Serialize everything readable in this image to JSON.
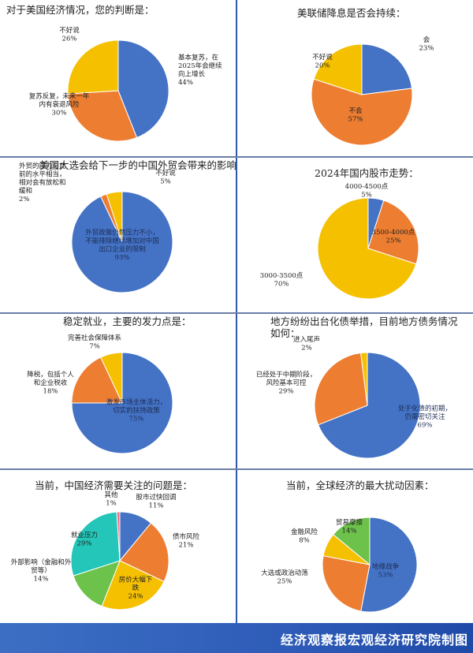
{
  "footer": {
    "credit": "经济观察报宏观经济研究院制图"
  },
  "colors": {
    "blue": "#4472c4",
    "orange": "#ed7d31",
    "yellow": "#f5c000",
    "gray": "#a5a5a5",
    "teal": "#23c6b8",
    "green": "#6cc24a",
    "pink": "#f26b8a",
    "rule": "#2e59a8"
  },
  "chart_data": [
    {
      "type": "pie",
      "title": "对于美国经济情况，您的判断是：",
      "slices": [
        {
          "label": "基本复苏、在2025年会继续向上增长",
          "label_lines": [
            "基本复苏，在",
            "2025年会继续",
            "向上增长"
          ],
          "value": 44,
          "value_text": "44%",
          "color": "#4472c4"
        },
        {
          "label": "复苏反复，未来一年内有衰退风险",
          "label_lines": [
            "复苏反复，未来一年",
            "内有衰退风险"
          ],
          "value": 30,
          "value_text": "30%",
          "color": "#ed7d31"
        },
        {
          "label": "不好说",
          "label_lines": [
            "不好说"
          ],
          "value": 26,
          "value_text": "26%",
          "color": "#f5c000"
        }
      ]
    },
    {
      "type": "pie",
      "title": "美联储降息是否会持续：",
      "slices": [
        {
          "label": "会",
          "label_lines": [
            "会"
          ],
          "value": 23,
          "value_text": "23%",
          "color": "#4472c4"
        },
        {
          "label": "不会",
          "label_lines": [
            "不会"
          ],
          "value": 57,
          "value_text": "57%",
          "color": "#ed7d31"
        },
        {
          "label": "不好说",
          "label_lines": [
            "不好说"
          ],
          "value": 20,
          "value_text": "20%",
          "color": "#f5c000"
        }
      ]
    },
    {
      "type": "pie",
      "title": "美国大选会给下一步的中国外贸会带来的影响：",
      "slices": [
        {
          "label": "外贸政策仍然压力不小，不能排除继续增加对中国出口企业的限制",
          "label_lines": [
            "外贸政策仍然压力不小，",
            "不能排除继续增加对中国",
            "出口企业的限制"
          ],
          "value": 93,
          "value_text": "93%",
          "color": "#4472c4"
        },
        {
          "label": "外贸的压力与此前的水平相当，相对会有放松和缓和",
          "label_lines": [
            "外贸的压力与此",
            "前的水平相当，",
            "相对会有放松和",
            "缓和"
          ],
          "value": 2,
          "value_text": "2%",
          "color": "#ed7d31"
        },
        {
          "label": "不好说",
          "label_lines": [
            "不好说"
          ],
          "value": 5,
          "value_text": "5%",
          "color": "#f5c000"
        }
      ]
    },
    {
      "type": "pie",
      "title": "2024年国内股市走势：",
      "slices": [
        {
          "label": "4000-4500点",
          "label_lines": [
            "4000-4500点"
          ],
          "value": 5,
          "value_text": "5%",
          "color": "#4472c4"
        },
        {
          "label": "3500-4000点",
          "label_lines": [
            "3500-4000点"
          ],
          "value": 25,
          "value_text": "25%",
          "color": "#ed7d31"
        },
        {
          "label": "3000-3500点",
          "label_lines": [
            "3000-3500点"
          ],
          "value": 70,
          "value_text": "70%",
          "color": "#f5c000"
        }
      ]
    },
    {
      "type": "pie",
      "title": "稳定就业，主要的发力点是：",
      "slices": [
        {
          "label": "激发市场主体活力，切实的扶持政策",
          "label_lines": [
            "激发市场主体活力，",
            "切实的扶持政策"
          ],
          "value": 75,
          "value_text": "75%",
          "color": "#4472c4"
        },
        {
          "label": "降税，包括个人和企业税收",
          "label_lines": [
            "降税，包括个人",
            "和企业税收"
          ],
          "value": 18,
          "value_text": "18%",
          "color": "#ed7d31"
        },
        {
          "label": "完善社会保障体系",
          "label_lines": [
            "完善社会保障体系"
          ],
          "value": 7,
          "value_text": "7%",
          "color": "#f5c000"
        }
      ]
    },
    {
      "type": "pie",
      "title": "地方纷纷出台化债举措，目前地方债务情况如何：",
      "title_lines": [
        "地方纷纷出台化债举措，目前地方债务情况",
        "如何："
      ],
      "slices": [
        {
          "label": "处于化债的初期，仍需密切关注",
          "label_lines": [
            "处于化债的初期，",
            "仍需密切关注"
          ],
          "value": 69,
          "value_text": "69%",
          "color": "#4472c4"
        },
        {
          "label": "已经处于中期阶段，风险基本可控",
          "label_lines": [
            "已经处于中期阶段，",
            "风险基本可控"
          ],
          "value": 29,
          "value_text": "29%",
          "color": "#ed7d31"
        },
        {
          "label": "进入尾声",
          "label_lines": [
            "进入尾声"
          ],
          "value": 2,
          "value_text": "2%",
          "color": "#f5c000"
        }
      ]
    },
    {
      "type": "pie",
      "title": "当前，中国经济需要关注的问题是：",
      "slices": [
        {
          "label": "股市过快回调",
          "label_lines": [
            "股市过快回调"
          ],
          "value": 11,
          "value_text": "11%",
          "color": "#4472c4"
        },
        {
          "label": "债市风险",
          "label_lines": [
            "债市风险"
          ],
          "value": 21,
          "value_text": "21%",
          "color": "#ed7d31"
        },
        {
          "label": "房价大幅下跌",
          "label_lines": [
            "房价大幅下",
            "跌"
          ],
          "value": 24,
          "value_text": "24%",
          "color": "#f5c000"
        },
        {
          "label": "外部影响（金融和外贸等）",
          "label_lines": [
            "外部影响（金融和外",
            "贸等）"
          ],
          "value": 14,
          "value_text": "14%",
          "color": "#6cc24a"
        },
        {
          "label": "就业压力",
          "label_lines": [
            "就业压力"
          ],
          "value": 29,
          "value_text": "29%",
          "color": "#23c6b8"
        },
        {
          "label": "其他",
          "label_lines": [
            "其他"
          ],
          "value": 1,
          "value_text": "1%",
          "color": "#f26b8a"
        }
      ]
    },
    {
      "type": "pie",
      "title": "当前，全球经济的最大扰动因素：",
      "slices": [
        {
          "label": "地缘战争",
          "label_lines": [
            "地缘战争"
          ],
          "value": 53,
          "value_text": "53%",
          "color": "#4472c4"
        },
        {
          "label": "大选或政治动荡",
          "label_lines": [
            "大选或政治动荡"
          ],
          "value": 25,
          "value_text": "25%",
          "color": "#ed7d31"
        },
        {
          "label": "金融风险",
          "label_lines": [
            "金融风险"
          ],
          "value": 8,
          "value_text": "8%",
          "color": "#f5c000"
        },
        {
          "label": "贸易摩擦",
          "label_lines": [
            "贸易摩擦"
          ],
          "value": 14,
          "value_text": "14%",
          "color": "#6cc24a"
        }
      ]
    }
  ]
}
